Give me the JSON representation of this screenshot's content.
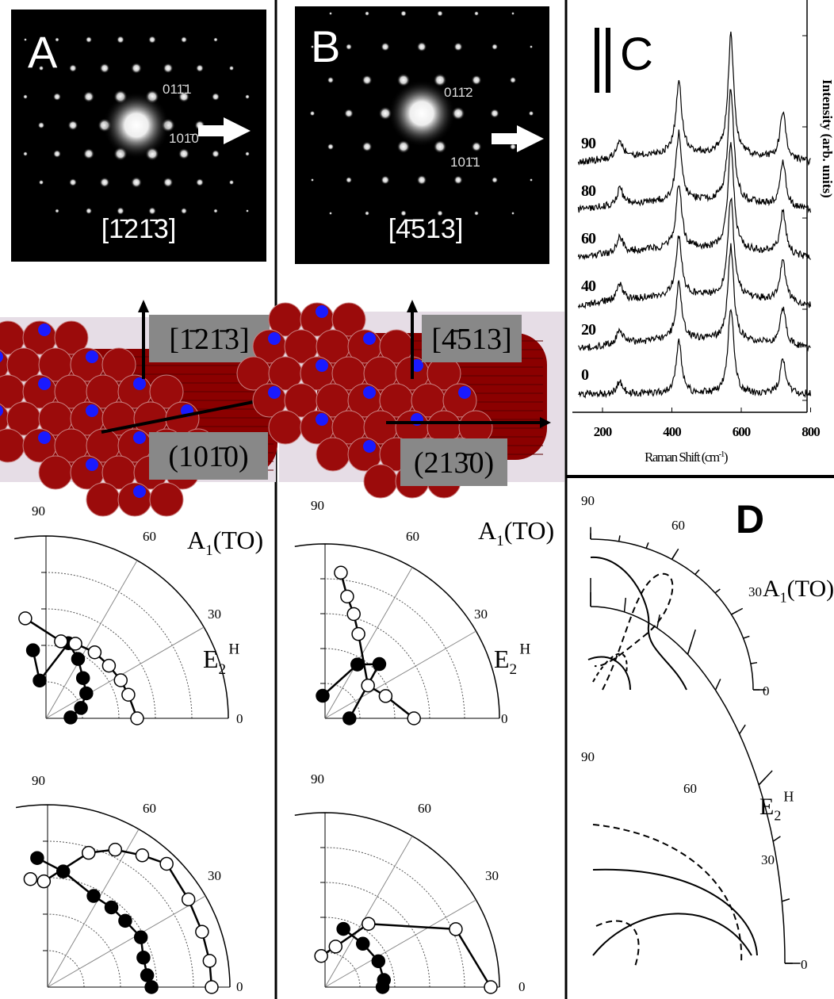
{
  "panels": [
    {
      "label": "A",
      "zone_axis": "[1̄21̄3]",
      "spots": [
        "011̄1",
        "101̄0"
      ],
      "model_labels": [
        "[1̄21̄3]",
        "(101̄0)"
      ],
      "polar_plots": [
        {
          "mode": {
            "base": "A",
            "sub": "1",
            "suffix": "(TO)"
          },
          "angle_labels": [
            90,
            60,
            30,
            0
          ],
          "filled": [
            [
              100.8,
              0.38
            ],
            [
              99.5,
              0.21
            ],
            [
              73.4,
              0.43
            ],
            [
              61.6,
              0.37
            ],
            [
              47.4,
              0.3
            ],
            [
              31.8,
              0.26
            ],
            [
              16.5,
              0.2
            ],
            [
              2,
              0.135
            ]
          ],
          "open": [
            [
              101.7,
              0.56
            ],
            [
              79,
              0.43
            ],
            [
              68.5,
              0.44
            ],
            [
              53.6,
              0.45
            ],
            [
              39.9,
              0.45
            ],
            [
              27,
              0.46
            ],
            [
              16,
              0.47
            ],
            [
              0,
              0.5
            ]
          ]
        },
        {
          "mode": {
            "base": "E",
            "sub": "2",
            "sup": "H"
          },
          "angle_labels": [
            90,
            60,
            30,
            0
          ],
          "filled": [
            [
              94.6,
              0.71
            ],
            [
              82.3,
              0.64
            ],
            [
              63.2,
              0.56
            ],
            [
              51.3,
              0.56
            ],
            [
              40.5,
              0.56
            ],
            [
              28.1,
              0.58
            ],
            [
              17.1,
              0.55
            ],
            [
              6.8,
              0.55
            ],
            [
              0,
              0.57
            ]
          ],
          "open": [
            [
              99,
              0.6
            ],
            [
              92,
              0.58
            ],
            [
              73,
              0.77
            ],
            [
              63.8,
              0.84
            ],
            [
              54.3,
              0.89
            ],
            [
              46,
              0.94
            ],
            [
              31.9,
              0.91
            ],
            [
              19.7,
              0.9
            ],
            [
              9.2,
              0.9
            ],
            [
              0,
              0.9
            ]
          ]
        }
      ]
    },
    {
      "label": "B",
      "zone_axis": "[4̄513]",
      "spots": [
        "011̄2",
        "101̄1"
      ],
      "model_labels": [
        "[4̄513]",
        "(213̄0)"
      ],
      "polar_plots": [
        {
          "mode": {
            "base": "A",
            "sub": "1",
            "suffix": "(TO)"
          },
          "angle_labels": [
            90,
            60,
            30,
            0
          ],
          "filled": [
            [
              96,
              0.13
            ],
            [
              59,
              0.36
            ],
            [
              45,
              0.44
            ],
            [
              0,
              0.14
            ]
          ],
          "open": [
            [
              83.8,
              0.84
            ],
            [
              79.7,
              0.71
            ],
            [
              74.6,
              0.62
            ],
            [
              68.4,
              0.52
            ],
            [
              37.4,
              0.31
            ],
            [
              20.2,
              0.37
            ],
            [
              0,
              0.51
            ]
          ]
        },
        {
          "mode": {
            "base": "E",
            "sub": "2",
            "sup": "H"
          },
          "angle_labels": [
            90,
            60,
            30,
            0
          ],
          "filled": [
            [
              72.5,
              0.35
            ],
            [
              48.9,
              0.33
            ],
            [
              25.9,
              0.34
            ],
            [
              6.9,
              0.34
            ],
            [
              0,
              0.33
            ]
          ],
          "open": [
            [
              97,
              0.18
            ],
            [
              75.4,
              0.24
            ],
            [
              55.5,
              0.44
            ],
            [
              23.9,
              0.82
            ],
            [
              0,
              0.95
            ]
          ]
        }
      ]
    },
    {
      "label": "C",
      "y_label": "Intensity (arb. units)",
      "x_label": "Raman Shift (cm",
      "x_label_sup": "-1",
      "x_label_close": ")",
      "x_ticks": [
        200,
        400,
        600,
        800
      ],
      "spectra": [
        90,
        80,
        60,
        40,
        20,
        0
      ],
      "peaks": [
        [
          250,
          0.15
        ],
        [
          420,
          0.6
        ],
        [
          570,
          1
        ],
        [
          720,
          0.4
        ]
      ]
    },
    {
      "label": "D",
      "polar_plots": [
        {
          "mode": {
            "base": "A",
            "sub": "1",
            "suffix": "(TO)"
          },
          "angle_labels": [
            90,
            60,
            30,
            0
          ]
        },
        {
          "mode": {
            "base": "E",
            "sub": "2",
            "sup": "H"
          },
          "angle_labels": [
            90,
            60,
            30,
            0
          ]
        }
      ]
    }
  ]
}
